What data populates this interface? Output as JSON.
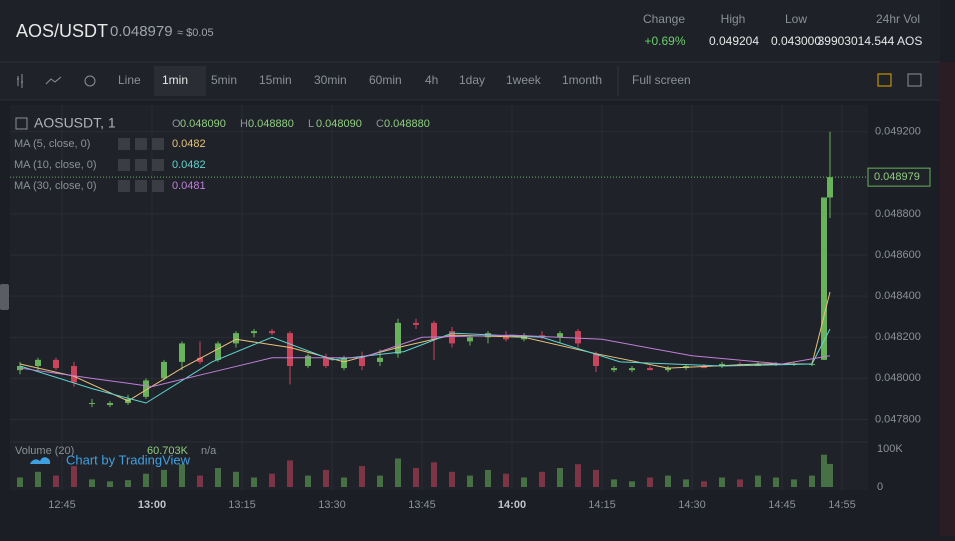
{
  "header": {
    "pair": "AOS/USDT",
    "price": "0.048979",
    "approx": "≈ $0.05",
    "stats": [
      {
        "label": "Change",
        "value": "+0.69%"
      },
      {
        "label": "High",
        "value": "0.049204"
      },
      {
        "label": "Low",
        "value": "0.043000"
      },
      {
        "label": "24hr Vol",
        "value": "39903014.544 AOS"
      }
    ]
  },
  "toolbar": {
    "items": [
      "Line",
      "1min",
      "5min",
      "15min",
      "30min",
      "60min",
      "4h",
      "1day",
      "1week",
      "1month"
    ],
    "active": "1min",
    "fullscreen": "Full screen"
  },
  "chart_data": {
    "type": "candlestick",
    "symbol": "AOSUSDT, 1",
    "ohlc": [
      {
        "key": "O",
        "value": 0.04809,
        "label": "0.048090"
      },
      {
        "key": "H",
        "value": 0.04888,
        "label": "0.048880"
      },
      {
        "key": "L",
        "value": 0.04809,
        "label": "0.048090"
      },
      {
        "key": "C",
        "value": 0.04888,
        "label": "0.048880"
      }
    ],
    "up_color": "#6ab15c",
    "down_color": "#c8455b",
    "x": [
      "12:38",
      "12:41",
      "12:44",
      "12:47",
      "12:50",
      "12:53",
      "12:56",
      "12:59",
      "13:02",
      "13:05",
      "13:08",
      "13:11",
      "13:14",
      "13:17",
      "13:20",
      "13:23",
      "13:26",
      "13:29",
      "13:32",
      "13:35",
      "13:38",
      "13:41",
      "13:44",
      "13:47",
      "13:50",
      "13:53",
      "13:56",
      "13:59",
      "14:02",
      "14:05",
      "14:08",
      "14:11",
      "14:14",
      "14:17",
      "14:20",
      "14:23",
      "14:26",
      "14:29",
      "14:32",
      "14:35",
      "14:38",
      "14:41",
      "14:44",
      "14:47",
      "14:50",
      "14:52",
      "14:53"
    ],
    "open": [
      0.04804,
      0.04806,
      0.04809,
      0.04806,
      0.04788,
      0.04787,
      0.04788,
      0.04791,
      0.048,
      0.04808,
      0.0481,
      0.04809,
      0.04817,
      0.04822,
      0.04823,
      0.04822,
      0.04806,
      0.0481,
      0.04805,
      0.0481,
      0.04808,
      0.04812,
      0.04827,
      0.04827,
      0.04823,
      0.04818,
      0.0482,
      0.04821,
      0.04819,
      0.04821,
      0.0482,
      0.04823,
      0.04812,
      0.04804,
      0.04804,
      0.04805,
      0.04804,
      0.04805,
      0.04806,
      0.04806,
      0.04807,
      0.04806,
      0.04807,
      0.04807,
      0.04807,
      0.04809,
      0.04888
    ],
    "high": [
      0.04808,
      0.0481,
      0.0481,
      0.04808,
      0.0479,
      0.04789,
      0.04792,
      0.048,
      0.04809,
      0.04818,
      0.04818,
      0.04818,
      0.04823,
      0.04824,
      0.04824,
      0.04823,
      0.04812,
      0.04812,
      0.04811,
      0.04813,
      0.04814,
      0.04829,
      0.04829,
      0.04828,
      0.04825,
      0.04821,
      0.04823,
      0.04823,
      0.04822,
      0.04823,
      0.04823,
      0.04824,
      0.04813,
      0.04806,
      0.04806,
      0.04806,
      0.04806,
      0.04807,
      0.04807,
      0.04808,
      0.04808,
      0.04808,
      0.04808,
      0.04808,
      0.04808,
      0.04888,
      0.0492
    ],
    "low": [
      0.04802,
      0.04804,
      0.04804,
      0.04796,
      0.04786,
      0.04786,
      0.04787,
      0.0479,
      0.04799,
      0.04804,
      0.04807,
      0.04808,
      0.04815,
      0.0482,
      0.04821,
      0.04797,
      0.04805,
      0.04805,
      0.04804,
      0.04804,
      0.04806,
      0.0481,
      0.04824,
      0.04809,
      0.04815,
      0.04816,
      0.04817,
      0.04818,
      0.04818,
      0.04819,
      0.04817,
      0.04815,
      0.04803,
      0.04803,
      0.04803,
      0.04804,
      0.04803,
      0.04804,
      0.04805,
      0.04805,
      0.04806,
      0.04806,
      0.04806,
      0.04806,
      0.04806,
      0.04809,
      0.04878
    ],
    "close": [
      0.04806,
      0.04809,
      0.04805,
      0.04798,
      0.04788,
      0.04788,
      0.0479,
      0.04799,
      0.04808,
      0.04817,
      0.04808,
      0.04817,
      0.04822,
      0.04823,
      0.04822,
      0.04806,
      0.04811,
      0.04806,
      0.0481,
      0.04806,
      0.0481,
      0.04827,
      0.04826,
      0.04819,
      0.04817,
      0.0482,
      0.04822,
      0.04819,
      0.04821,
      0.0482,
      0.04822,
      0.04817,
      0.04806,
      0.04805,
      0.04805,
      0.04804,
      0.04805,
      0.04806,
      0.04805,
      0.04807,
      0.04806,
      0.04807,
      0.04807,
      0.04807,
      0.04807,
      0.04888,
      0.048979
    ],
    "ma": [
      {
        "name": "MA (5, close, 0)",
        "last": 0.0482,
        "color": "#e9c27a",
        "x": [
          "12:38",
          "12:47",
          "12:56",
          "13:05",
          "13:14",
          "13:23",
          "13:32",
          "13:41",
          "13:50",
          "14:02",
          "14:14",
          "14:26",
          "14:41",
          "14:50",
          "14:53"
        ],
        "values": [
          0.04807,
          0.04801,
          0.04789,
          0.04805,
          0.04819,
          0.04815,
          0.04808,
          0.04815,
          0.04821,
          0.0482,
          0.04812,
          0.04805,
          0.04807,
          0.04807,
          0.04842
        ]
      },
      {
        "name": "MA (10, close, 0)",
        "last": 0.0482,
        "color": "#5ed6cf",
        "x": [
          "12:38",
          "12:50",
          "12:59",
          "13:10",
          "13:20",
          "13:30",
          "13:42",
          "13:50",
          "14:05",
          "14:18",
          "14:35",
          "14:50",
          "14:53"
        ],
        "values": [
          0.04806,
          0.04795,
          0.04788,
          0.04808,
          0.0482,
          0.04809,
          0.04813,
          0.04822,
          0.0482,
          0.04808,
          0.04806,
          0.04807,
          0.04824
        ]
      },
      {
        "name": "MA (30, close, 0)",
        "last": 0.0481,
        "color": "#c080d8",
        "x": [
          "12:38",
          "12:50",
          "13:00",
          "13:10",
          "13:20",
          "13:35",
          "13:45",
          "14:00",
          "14:15",
          "14:30",
          "14:45",
          "14:53"
        ],
        "values": [
          0.04805,
          0.048,
          0.04796,
          0.04803,
          0.0481,
          0.0481,
          0.0482,
          0.04821,
          0.04819,
          0.04811,
          0.04807,
          0.04811
        ]
      }
    ],
    "last_price": 0.048979,
    "ylim": [
      0.0477,
      0.04933
    ],
    "yticks": [
      {
        "value": 0.0478,
        "label": "0.047800"
      },
      {
        "value": 0.048,
        "label": "0.048000"
      },
      {
        "value": 0.0482,
        "label": "0.048200"
      },
      {
        "value": 0.0484,
        "label": "0.048400"
      },
      {
        "value": 0.0486,
        "label": "0.048600"
      },
      {
        "value": 0.0488,
        "label": "0.048800"
      },
      {
        "value": 0.0492,
        "label": "0.049200"
      }
    ],
    "xticks": [
      "12:45",
      "13:00",
      "13:15",
      "13:30",
      "13:45",
      "14:00",
      "14:15",
      "14:30",
      "14:45",
      "14:55"
    ],
    "volume": {
      "title": "Volume (20)",
      "last": {
        "value": 60703,
        "label": "60.703K"
      },
      "ma": "n/a",
      "values": [
        25000,
        40000,
        30000,
        55000,
        20000,
        15000,
        18000,
        35000,
        45000,
        60000,
        30000,
        50000,
        40000,
        25000,
        35000,
        70000,
        30000,
        45000,
        25000,
        55000,
        30000,
        75000,
        50000,
        65000,
        40000,
        30000,
        45000,
        35000,
        25000,
        40000,
        50000,
        60000,
        45000,
        20000,
        15000,
        25000,
        30000,
        20000,
        15000,
        25000,
        20000,
        30000,
        25000,
        20000,
        30000,
        85000,
        60703
      ],
      "ylim": [
        0,
        100000
      ],
      "yticks": [
        0,
        {
          "value": 100000,
          "label": "100K"
        }
      ]
    },
    "credit": "Chart by TradingView"
  }
}
